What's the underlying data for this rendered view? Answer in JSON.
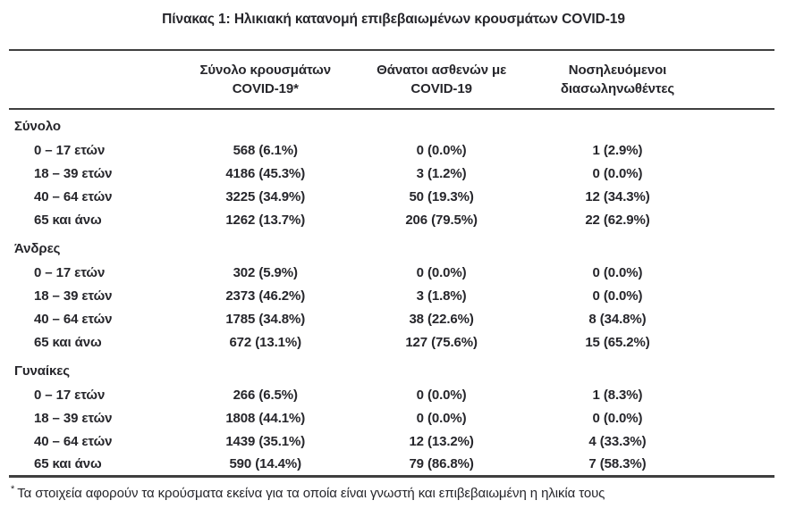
{
  "title": "Πίνακας 1: Ηλικιακή κατανομή επιβεβαιωμένων κρουσμάτων COVID-19",
  "table": {
    "columns": [
      {
        "line1": "Σύνολο κρουσμάτων",
        "line2": "COVID-19*"
      },
      {
        "line1": "Θάνατοι ασθενών με",
        "line2": "COVID-19"
      },
      {
        "line1": "Νοσηλευόμενοι",
        "line2": "διασωληνωθέντες"
      }
    ],
    "sections": [
      {
        "label": "Σύνολο",
        "rows": [
          {
            "age": "0 – 17 ετών",
            "cases": "568 (6.1%)",
            "deaths": "0 (0.0%)",
            "intubated": "1 (2.9%)"
          },
          {
            "age": "18 – 39 ετών",
            "cases": "4186 (45.3%)",
            "deaths": "3 (1.2%)",
            "intubated": "0 (0.0%)"
          },
          {
            "age": "40 – 64 ετών",
            "cases": "3225 (34.9%)",
            "deaths": "50 (19.3%)",
            "intubated": "12 (34.3%)"
          },
          {
            "age": "65 και άνω",
            "cases": "1262 (13.7%)",
            "deaths": "206 (79.5%)",
            "intubated": "22 (62.9%)"
          }
        ]
      },
      {
        "label": "Άνδρες",
        "rows": [
          {
            "age": "0 – 17 ετών",
            "cases": "302 (5.9%)",
            "deaths": "0 (0.0%)",
            "intubated": "0 (0.0%)"
          },
          {
            "age": "18 – 39 ετών",
            "cases": "2373 (46.2%)",
            "deaths": "3 (1.8%)",
            "intubated": "0 (0.0%)"
          },
          {
            "age": "40 – 64 ετών",
            "cases": "1785 (34.8%)",
            "deaths": "38 (22.6%)",
            "intubated": "8 (34.8%)"
          },
          {
            "age": "65 και άνω",
            "cases": "672 (13.1%)",
            "deaths": "127 (75.6%)",
            "intubated": "15 (65.2%)"
          }
        ]
      },
      {
        "label": "Γυναίκες",
        "rows": [
          {
            "age": "0 – 17 ετών",
            "cases": "266 (6.5%)",
            "deaths": "0 (0.0%)",
            "intubated": "1 (8.3%)"
          },
          {
            "age": "18 – 39 ετών",
            "cases": "1808 (44.1%)",
            "deaths": "0 (0.0%)",
            "intubated": "0 (0.0%)"
          },
          {
            "age": "40 – 64 ετών",
            "cases": "1439 (35.1%)",
            "deaths": "12 (13.2%)",
            "intubated": "4 (33.3%)"
          },
          {
            "age": "65 και άνω",
            "cases": "590 (14.4%)",
            "deaths": "79 (86.8%)",
            "intubated": "7 (58.3%)"
          }
        ]
      }
    ]
  },
  "footnote": {
    "marker": "*",
    "text": "Τα στοιχεία αφορούν τα κρούσματα εκείνα για τα οποία είναι γνωστή και επιβεβαιωμένη η ηλικία τους"
  },
  "colors": {
    "text": "#26262b",
    "rule": "#3f3f3f",
    "background": "#ffffff"
  }
}
